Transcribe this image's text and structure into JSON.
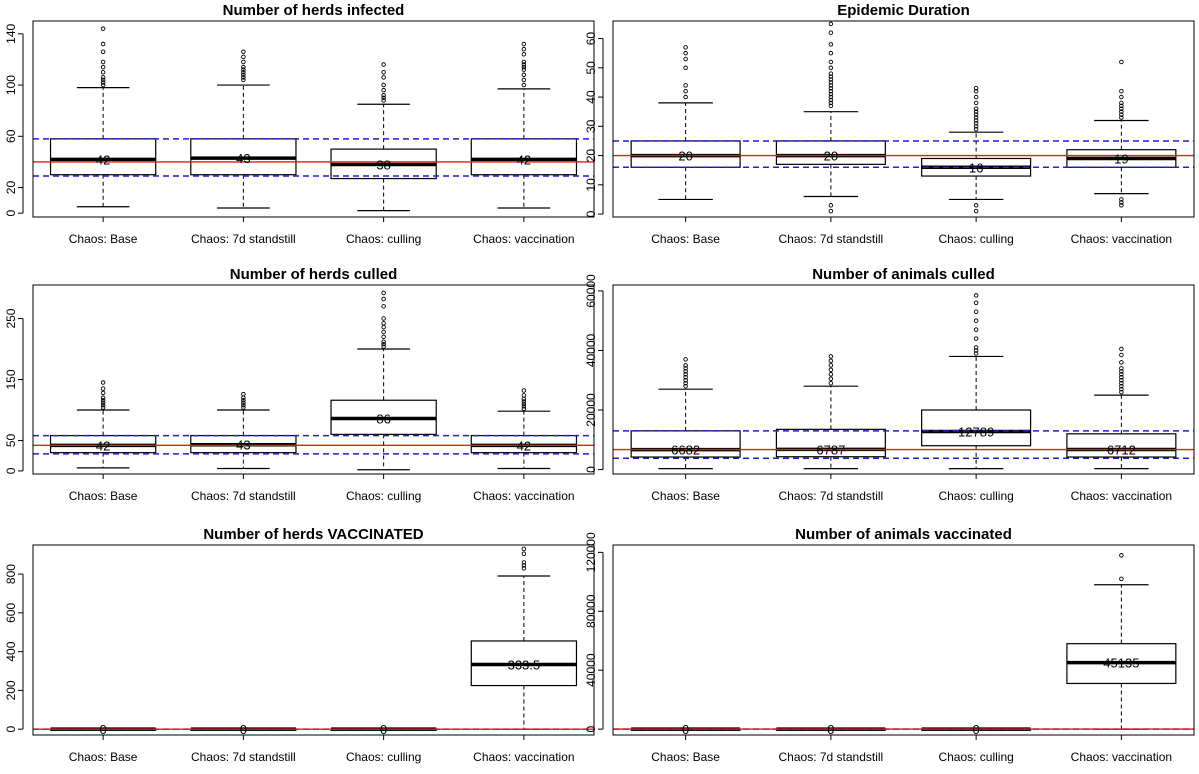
{
  "colors": {
    "red_line": "#e41a1c",
    "blue_dashed": "#1f1fd6",
    "box_fill": "#ffffff",
    "axis": "#000000"
  },
  "chart_data": [
    {
      "type": "box",
      "title": "Number of herds infected",
      "categories": [
        "Chaos: Base",
        "Chaos: 7d standstill",
        "Chaos: culling",
        "Chaos: vaccination"
      ],
      "yticks": [
        0,
        20,
        60,
        100,
        140
      ],
      "ylim": [
        -3,
        150
      ],
      "ref_line": 40,
      "ref_band": [
        29,
        58
      ],
      "boxes": [
        {
          "q1": 30,
          "median": 42,
          "q3": 58,
          "whisker_low": 5,
          "whisker_high": 98,
          "label": "42",
          "outliers": [
            100,
            102,
            104,
            106,
            110,
            114,
            118,
            126,
            132,
            144
          ]
        },
        {
          "q1": 30,
          "median": 43,
          "q3": 58,
          "whisker_low": 4,
          "whisker_high": 100,
          "label": "43",
          "outliers": [
            104,
            106,
            108,
            110,
            112,
            114,
            118,
            122,
            126
          ]
        },
        {
          "q1": 27,
          "median": 38,
          "q3": 50,
          "whisker_low": 2,
          "whisker_high": 85,
          "label": "38",
          "outliers": [
            88,
            90,
            92,
            96,
            100,
            106,
            110,
            116
          ]
        },
        {
          "q1": 30,
          "median": 42,
          "q3": 58,
          "whisker_low": 4,
          "whisker_high": 97,
          "label": "42",
          "outliers": [
            100,
            104,
            108,
            112,
            114,
            116,
            118,
            124,
            128,
            132
          ]
        }
      ]
    },
    {
      "type": "box",
      "title": "Epidemic Duration",
      "categories": [
        "Chaos: Base",
        "Chaos: 7d standstill",
        "Chaos: culling",
        "Chaos: vaccination"
      ],
      "yticks": [
        0,
        10,
        20,
        30,
        40,
        50,
        60
      ],
      "ylim": [
        -1,
        66
      ],
      "ref_line": 20,
      "ref_band": [
        16,
        25
      ],
      "boxes": [
        {
          "q1": 16,
          "median": 20,
          "q3": 25,
          "whisker_low": 5,
          "whisker_high": 38,
          "label": "20",
          "outliers": [
            40,
            42,
            44,
            50,
            53,
            55,
            57
          ]
        },
        {
          "q1": 17,
          "median": 20,
          "q3": 25,
          "whisker_low": 6,
          "whisker_high": 35,
          "label": "20",
          "outliers": [
            1,
            3,
            37,
            38,
            39,
            40,
            41,
            42,
            43,
            44,
            45,
            46,
            47,
            48,
            50,
            52,
            55,
            58,
            62,
            65
          ]
        },
        {
          "q1": 13,
          "median": 16,
          "q3": 19,
          "whisker_low": 5,
          "whisker_high": 28,
          "label": "16",
          "outliers": [
            1,
            3,
            29,
            30,
            31,
            32,
            33,
            34,
            35,
            36,
            38,
            40,
            42,
            43
          ]
        },
        {
          "q1": 16,
          "median": 19,
          "q3": 22,
          "whisker_low": 7,
          "whisker_high": 32,
          "label": "19",
          "outliers": [
            3,
            4,
            5,
            33,
            34,
            35,
            36,
            37,
            38,
            40,
            42,
            52
          ]
        }
      ]
    },
    {
      "type": "box",
      "title": "Number of herds culled",
      "categories": [
        "Chaos: Base",
        "Chaos: 7d standstill",
        "Chaos: culling",
        "Chaos: vaccination"
      ],
      "yticks": [
        0,
        50,
        150,
        250
      ],
      "ylim": [
        -5,
        305
      ],
      "ref_line": 42,
      "ref_band": [
        28,
        58
      ],
      "boxes": [
        {
          "q1": 30,
          "median": 42,
          "q3": 58,
          "whisker_low": 5,
          "whisker_high": 100,
          "label": "42",
          "outliers": [
            104,
            108,
            112,
            116,
            120,
            128,
            135,
            145
          ]
        },
        {
          "q1": 30,
          "median": 43,
          "q3": 58,
          "whisker_low": 4,
          "whisker_high": 100,
          "label": "43",
          "outliers": [
            104,
            108,
            112,
            116,
            120,
            126
          ]
        },
        {
          "q1": 60,
          "median": 86,
          "q3": 116,
          "whisker_low": 2,
          "whisker_high": 200,
          "label": "86",
          "outliers": [
            204,
            208,
            212,
            220,
            228,
            236,
            242,
            250,
            270,
            282,
            292
          ]
        },
        {
          "q1": 30,
          "median": 42,
          "q3": 58,
          "whisker_low": 4,
          "whisker_high": 98,
          "label": "42",
          "outliers": [
            102,
            106,
            110,
            114,
            118,
            124,
            132
          ]
        }
      ]
    },
    {
      "type": "box",
      "title": "Number of animals culled",
      "categories": [
        "Chaos: Base",
        "Chaos: 7d standstill",
        "Chaos: culling",
        "Chaos: vaccination"
      ],
      "yticks": [
        0,
        20000,
        40000,
        60000
      ],
      "ylim": [
        -1500,
        62000
      ],
      "ref_line": 6700,
      "ref_band": [
        3800,
        13000
      ],
      "boxes": [
        {
          "q1": 4200,
          "median": 6682,
          "q3": 13000,
          "whisker_low": 300,
          "whisker_high": 27000,
          "label": "6682",
          "outliers": [
            28000,
            29000,
            30000,
            31000,
            32000,
            33000,
            34000,
            35000,
            37000
          ]
        },
        {
          "q1": 4300,
          "median": 6787,
          "q3": 13500,
          "whisker_low": 300,
          "whisker_high": 28000,
          "label": "6787",
          "outliers": [
            29000,
            30500,
            32000,
            33500,
            35000,
            36500,
            38000
          ]
        },
        {
          "q1": 8000,
          "median": 12789,
          "q3": 20000,
          "whisker_low": 300,
          "whisker_high": 38000,
          "label": "12789",
          "outliers": [
            39000,
            40000,
            41000,
            44000,
            47000,
            50000,
            53000,
            56000,
            58500
          ]
        },
        {
          "q1": 4200,
          "median": 6712,
          "q3": 12000,
          "whisker_low": 300,
          "whisker_high": 25000,
          "label": "6712",
          "outliers": [
            26000,
            27000,
            28000,
            29000,
            30000,
            31000,
            32000,
            33000,
            34000,
            36000,
            38500,
            40500
          ]
        }
      ]
    },
    {
      "type": "box",
      "title": "Number of herds VACCINATED",
      "categories": [
        "Chaos: Base",
        "Chaos: 7d standstill",
        "Chaos: culling",
        "Chaos: vaccination"
      ],
      "yticks": [
        0,
        200,
        400,
        600,
        800
      ],
      "ylim": [
        -30,
        950
      ],
      "ref_line": 0,
      "ref_band": [
        0,
        0
      ],
      "boxes": [
        {
          "q1": 0,
          "median": 0,
          "q3": 0,
          "whisker_low": 0,
          "whisker_high": 0,
          "label": "0",
          "outliers": []
        },
        {
          "q1": 0,
          "median": 0,
          "q3": 0,
          "whisker_low": 0,
          "whisker_high": 0,
          "label": "0",
          "outliers": []
        },
        {
          "q1": 0,
          "median": 0,
          "q3": 0,
          "whisker_low": 0,
          "whisker_high": 0,
          "label": "0",
          "outliers": []
        },
        {
          "q1": 225,
          "median": 333.5,
          "q3": 455,
          "whisker_low": 0,
          "whisker_high": 790,
          "label": "333.5",
          "outliers": [
            830,
            845,
            860,
            905,
            930
          ]
        }
      ]
    },
    {
      "type": "box",
      "title": "Number of animals vaccinated",
      "categories": [
        "Chaos: Base",
        "Chaos: 7d standstill",
        "Chaos: culling",
        "Chaos: vaccination"
      ],
      "yticks": [
        0,
        40000,
        80000,
        120000
      ],
      "ylim": [
        -4000,
        125000
      ],
      "ref_line": 0,
      "ref_band": [
        0,
        0
      ],
      "boxes": [
        {
          "q1": 0,
          "median": 0,
          "q3": 0,
          "whisker_low": 0,
          "whisker_high": 0,
          "label": "0",
          "outliers": []
        },
        {
          "q1": 0,
          "median": 0,
          "q3": 0,
          "whisker_low": 0,
          "whisker_high": 0,
          "label": "0",
          "outliers": []
        },
        {
          "q1": 0,
          "median": 0,
          "q3": 0,
          "whisker_low": 0,
          "whisker_high": 0,
          "label": "0",
          "outliers": []
        },
        {
          "q1": 31000,
          "median": 45135,
          "q3": 58000,
          "whisker_low": 0,
          "whisker_high": 98000,
          "label": "45135",
          "outliers": [
            102000,
            118000
          ]
        }
      ]
    }
  ]
}
